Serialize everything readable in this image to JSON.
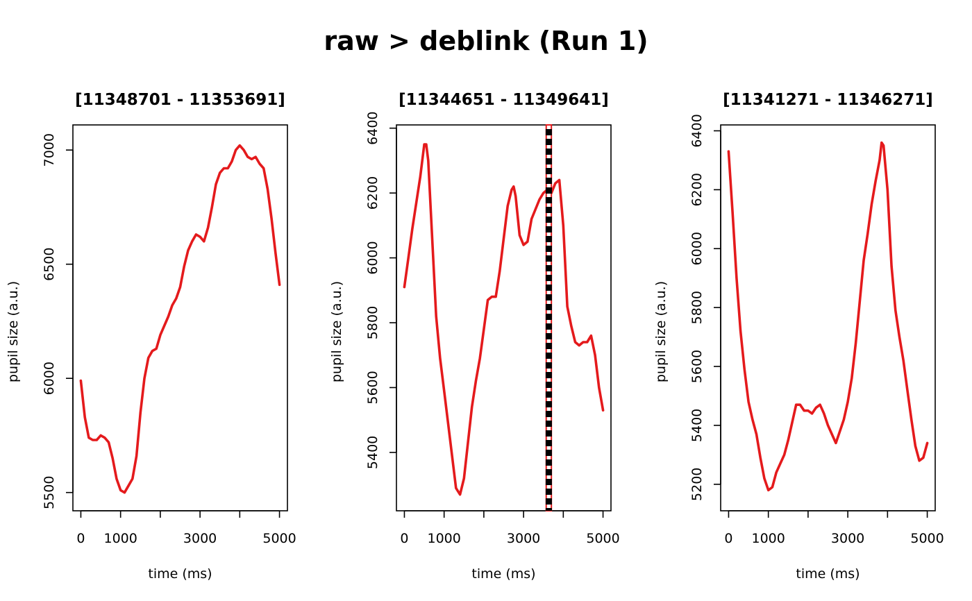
{
  "figure": {
    "title": "raw > deblink (Run 1)"
  },
  "colors": {
    "series": "#e41a1c",
    "marker_fill": "#ffffff",
    "marker_dash": "#000000"
  },
  "chart_data": [
    {
      "type": "line",
      "title": "[11348701 - 11353691]",
      "xlabel": "time (ms)",
      "ylabel": "pupil size (a.u.)",
      "xlim": [
        -200,
        5200
      ],
      "ylim": [
        5420,
        7110
      ],
      "xticks": [
        0,
        1000,
        2000,
        3000,
        4000,
        5000
      ],
      "xtick_labels": [
        "0",
        "1000",
        "",
        "3000",
        "",
        "5000"
      ],
      "yticks": [
        5500,
        6000,
        6500,
        7000
      ],
      "ytick_labels": [
        "5500",
        "6000",
        "6500",
        "7000"
      ],
      "grid": false,
      "series": [
        {
          "x": [
            0,
            100,
            200,
            300,
            400,
            500,
            600,
            700,
            800,
            900,
            1000,
            1100,
            1200,
            1300,
            1400,
            1500,
            1600,
            1700,
            1800,
            1900,
            2000,
            2100,
            2200,
            2300,
            2400,
            2500,
            2600,
            2700,
            2800,
            2900,
            3000,
            3100,
            3200,
            3300,
            3400,
            3500,
            3600,
            3700,
            3800,
            3900,
            4000,
            4100,
            4200,
            4300,
            4400,
            4500,
            4600,
            4700,
            4800,
            4900,
            5000
          ],
          "y": [
            5990,
            5830,
            5740,
            5730,
            5730,
            5750,
            5740,
            5720,
            5650,
            5560,
            5510,
            5500,
            5530,
            5560,
            5660,
            5850,
            6000,
            6090,
            6120,
            6130,
            6190,
            6230,
            6270,
            6320,
            6350,
            6400,
            6490,
            6560,
            6600,
            6630,
            6620,
            6600,
            6660,
            6750,
            6850,
            6900,
            6920,
            6920,
            6950,
            7000,
            7020,
            7000,
            6970,
            6960,
            6970,
            6940,
            6920,
            6830,
            6700,
            6550,
            6410
          ]
        }
      ],
      "markers": []
    },
    {
      "type": "line",
      "title": "[11344651 - 11349641]",
      "xlabel": "time (ms)",
      "ylabel": "pupil size (a.u.)",
      "xlim": [
        -200,
        5200
      ],
      "ylim": [
        5220,
        6410
      ],
      "xticks": [
        0,
        1000,
        2000,
        3000,
        4000,
        5000
      ],
      "xtick_labels": [
        "0",
        "1000",
        "",
        "3000",
        "",
        "5000"
      ],
      "yticks": [
        5400,
        5600,
        5800,
        6000,
        6200,
        6400
      ],
      "ytick_labels": [
        "5400",
        "5600",
        "5800",
        "6000",
        "6200",
        "6400"
      ],
      "grid": false,
      "series": [
        {
          "x": [
            0,
            100,
            200,
            300,
            400,
            500,
            550,
            600,
            700,
            800,
            900,
            1000,
            1100,
            1200,
            1300,
            1400,
            1500,
            1600,
            1700,
            1800,
            1900,
            2000,
            2100,
            2200,
            2300,
            2400,
            2500,
            2600,
            2700,
            2750,
            2800,
            2900,
            3000,
            3100,
            3200,
            3300,
            3400,
            3500,
            3600,
            3700,
            3800,
            3900,
            4000,
            4100,
            4200,
            4300,
            4400,
            4500,
            4600,
            4700,
            4800,
            4900,
            5000
          ],
          "y": [
            5910,
            6000,
            6090,
            6170,
            6250,
            6350,
            6350,
            6300,
            6060,
            5820,
            5690,
            5590,
            5490,
            5390,
            5290,
            5270,
            5320,
            5430,
            5540,
            5620,
            5690,
            5780,
            5870,
            5880,
            5880,
            5960,
            6060,
            6160,
            6210,
            6220,
            6190,
            6070,
            6040,
            6050,
            6120,
            6150,
            6180,
            6200,
            6210,
            6200,
            6230,
            6240,
            6100,
            5850,
            5790,
            5740,
            5730,
            5740,
            5740,
            5760,
            5700,
            5600,
            5530
          ]
        }
      ],
      "markers": [
        {
          "x_start": 3570,
          "x_end": 3700
        }
      ]
    },
    {
      "type": "line",
      "title": "[11341271 - 11346271]",
      "xlabel": "time (ms)",
      "ylabel": "pupil size (a.u.)",
      "xlim": [
        -200,
        5200
      ],
      "ylim": [
        5110,
        6420
      ],
      "xticks": [
        0,
        1000,
        2000,
        3000,
        4000,
        5000
      ],
      "xtick_labels": [
        "0",
        "1000",
        "",
        "3000",
        "",
        "5000"
      ],
      "yticks": [
        5200,
        5400,
        5600,
        5800,
        6000,
        6200,
        6400
      ],
      "ytick_labels": [
        "5200",
        "5400",
        "5600",
        "5800",
        "6000",
        "6200",
        "6400"
      ],
      "grid": false,
      "series": [
        {
          "x": [
            0,
            100,
            200,
            300,
            400,
            500,
            600,
            700,
            800,
            900,
            1000,
            1100,
            1200,
            1300,
            1400,
            1500,
            1600,
            1700,
            1800,
            1900,
            2000,
            2100,
            2200,
            2300,
            2400,
            2500,
            2600,
            2700,
            2800,
            2900,
            3000,
            3100,
            3200,
            3300,
            3400,
            3500,
            3600,
            3700,
            3800,
            3850,
            3900,
            4000,
            4100,
            4200,
            4300,
            4400,
            4500,
            4600,
            4700,
            4800,
            4900,
            5000
          ],
          "y": [
            6330,
            6120,
            5900,
            5720,
            5590,
            5480,
            5420,
            5370,
            5290,
            5220,
            5180,
            5190,
            5240,
            5270,
            5300,
            5350,
            5410,
            5470,
            5470,
            5450,
            5450,
            5440,
            5460,
            5470,
            5440,
            5400,
            5370,
            5340,
            5380,
            5420,
            5480,
            5560,
            5680,
            5820,
            5960,
            6050,
            6150,
            6230,
            6300,
            6360,
            6350,
            6200,
            5940,
            5790,
            5700,
            5620,
            5520,
            5420,
            5330,
            5280,
            5290,
            5340
          ]
        }
      ],
      "markers": []
    }
  ]
}
